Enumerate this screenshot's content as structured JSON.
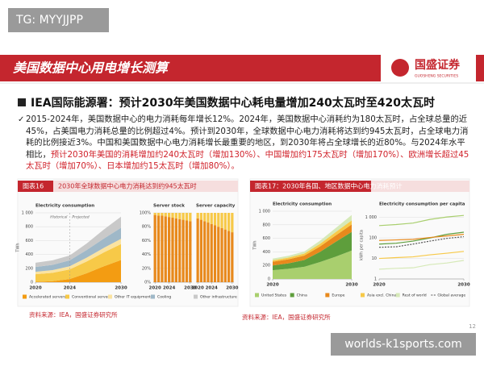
{
  "watermark_top": "TG: MYYJJPP",
  "watermark_bottom": "worlds-k1sports.com",
  "page_number": "12",
  "header": {
    "title": "美国数据中心用电增长测算",
    "logo": "国盛证券",
    "logo_sub": "GUOSHENG SECURITIES"
  },
  "heading": "IEA国际能源署：预计2030年美国数据中心耗电量增加240太瓦时至420太瓦时",
  "bullet": {
    "text": "2015-2024年，美国数据中心的电力消耗每年增长12%。2024年，美国数据中心消耗约为180太瓦时，占全球总量的近45%，占美国电力消耗总量的比例超过4%。预计到2030年，全球数据中心电力消耗将达到约945太瓦时，占全球电力消耗的比例接近3%。中国和美国数据中心电力消耗增长最重要的地区，到2030年将占全球增长的近80%。与2024年水平相比，",
    "highlight": "预计2030年美国的消耗增加约240太瓦时（增加130%）、中国增加约175太瓦时（增加170%）、欧洲增长超过45太瓦时（增加70%）、日本增加约15太瓦时（增加80%）。"
  },
  "figure16": {
    "label": "图表16",
    "title": "2030年全球数据中心电力消耗达到约945太瓦时",
    "source": "资料来源：IEA，国盛证券研究所",
    "charts": [
      {
        "type": "area",
        "title": "Electricity consumption",
        "y_label": "TWh",
        "annotations": [
          "Historical",
          "Projected"
        ],
        "x": [
          2020,
          2022,
          2024,
          2026,
          2028,
          2030
        ],
        "xlim": [
          2020,
          2030
        ],
        "xticks": [
          2020,
          2024,
          2030
        ],
        "ylim": [
          0,
          1000
        ],
        "yticks": [
          0,
          200,
          400,
          600,
          800,
          {
            "value": 1000,
            "label": "1 000"
          }
        ],
        "series": [
          {
            "name": "Accelerated servers",
            "color": "#f39c12",
            "values": [
              5,
              15,
              45,
              130,
              230,
              320
            ]
          },
          {
            "name": "Conventional servers",
            "color": "#f7c948",
            "values": [
              110,
              120,
              140,
              170,
              200,
              230
            ]
          },
          {
            "name": "Other IT equipment",
            "color": "#fbe3a0",
            "values": [
              35,
              40,
              45,
              55,
              65,
              75
            ]
          },
          {
            "name": "Cooling",
            "color": "#9fb8c8",
            "values": [
              70,
              75,
              85,
              110,
              135,
              160
            ]
          },
          {
            "name": "Other infrastructure",
            "color": "#c9c9c9",
            "values": [
              60,
              65,
              70,
              95,
              130,
              160
            ]
          }
        ]
      },
      {
        "type": "bar",
        "title": "Server stock",
        "x": [
          2020,
          2021,
          2022,
          2023,
          2024,
          2025,
          2026,
          2027,
          2028,
          2029,
          2030
        ],
        "xlim": [
          2019.5,
          2030.5
        ],
        "xticks": [
          2020,
          2024,
          2030
        ],
        "ylim": [
          0,
          100
        ],
        "yticks": [
          {
            "value": 0,
            "label": "0%"
          },
          {
            "value": 20,
            "label": "20%"
          },
          {
            "value": 40,
            "label": "40%"
          },
          {
            "value": 60,
            "label": "60%"
          },
          {
            "value": 80,
            "label": "80%"
          },
          {
            "value": 100,
            "label": "100%"
          }
        ],
        "series": [
          {
            "color": "#e8891c",
            "values": [
              97,
              96,
              96,
              95,
              94,
              93,
              92,
              91,
              90,
              89,
              88
            ]
          },
          {
            "color": "#f7c948",
            "values": [
              3,
              4,
              4,
              5,
              6,
              7,
              8,
              9,
              10,
              11,
              12
            ]
          }
        ]
      },
      {
        "type": "bar",
        "title": "Server capacity",
        "x": [
          2020,
          2021,
          2022,
          2023,
          2024,
          2025,
          2026,
          2027,
          2028,
          2029,
          2030
        ],
        "xlim": [
          2019.5,
          2030.5
        ],
        "xticks": [
          2020,
          2024,
          2030
        ],
        "ylim": [
          0,
          100
        ],
        "series": [
          {
            "color": "#e8891c",
            "values": [
              92,
              90,
              88,
              86,
              84,
              82,
              80,
              78,
              76,
              74,
              72
            ]
          },
          {
            "color": "#f7c948",
            "values": [
              8,
              10,
              12,
              14,
              16,
              18,
              20,
              22,
              24,
              26,
              28
            ]
          }
        ]
      }
    ]
  },
  "figure17": {
    "title": "图表17：2030年各国、地区数据中心电力消耗预计",
    "source": "资料来源：IEA，国盛证券研究所",
    "charts": [
      {
        "type": "area",
        "title": "Electricity consumption",
        "y_label": "TWh",
        "x": [
          2020,
          2022,
          2024,
          2026,
          2028,
          2030
        ],
        "xlim": [
          2020,
          2030
        ],
        "xticks": [
          2020,
          2030
        ],
        "ylim": [
          0,
          1000
        ],
        "yticks": [
          0,
          200,
          400,
          600,
          800,
          {
            "value": 1000,
            "label": "1 000"
          }
        ],
        "series": [
          {
            "name": "United States",
            "color": "#a9cf6e",
            "values": [
              130,
              150,
              180,
              250,
              330,
              420
            ]
          },
          {
            "name": "China",
            "color": "#5e9e3c",
            "values": [
              70,
              80,
              100,
              150,
              220,
              275
            ]
          },
          {
            "name": "Europe",
            "color": "#e8891c",
            "values": [
              55,
              60,
              65,
              80,
              95,
              110
            ]
          },
          {
            "name": "Asia excl. China",
            "color": "#f7c948",
            "values": [
              20,
              25,
              30,
              40,
              50,
              60
            ]
          },
          {
            "name": "Rest of world",
            "color": "#d6e9b8",
            "values": [
              25,
              27,
              30,
              45,
              60,
              80
            ]
          }
        ]
      },
      {
        "type": "line",
        "title": "Electricity consumption per capita",
        "y_label": "kWh per capita",
        "log_scale": true,
        "x": [
          2020,
          2022,
          2024,
          2026,
          2028,
          2030
        ],
        "xlim": [
          2020,
          2030
        ],
        "xticks": [
          2020,
          2030
        ],
        "ylim": [
          1,
          2000
        ],
        "yticks": [
          1,
          10,
          100,
          {
            "value": 1000,
            "label": "1 000"
          }
        ],
        "series": [
          {
            "color": "#a9cf6e",
            "values": [
              400,
              450,
              530,
              800,
              1050,
              1250
            ]
          },
          {
            "color": "#5e9e3c",
            "values": [
              50,
              55,
              70,
              100,
              150,
              190
            ]
          },
          {
            "color": "#e8891c",
            "values": [
              75,
              80,
              85,
              105,
              125,
              150
            ]
          },
          {
            "color": "#f7c948",
            "values": [
              10,
              11,
              12,
              15,
              18,
              22
            ]
          },
          {
            "color": "#d6e9b8",
            "values": [
              3,
              3.3,
              3.5,
              5,
              6,
              8
            ]
          },
          {
            "name": "Global average",
            "color": "#555555",
            "dashed": true,
            "values": [
              35,
              37,
              50,
              70,
              95,
              115
            ]
          }
        ]
      }
    ]
  }
}
